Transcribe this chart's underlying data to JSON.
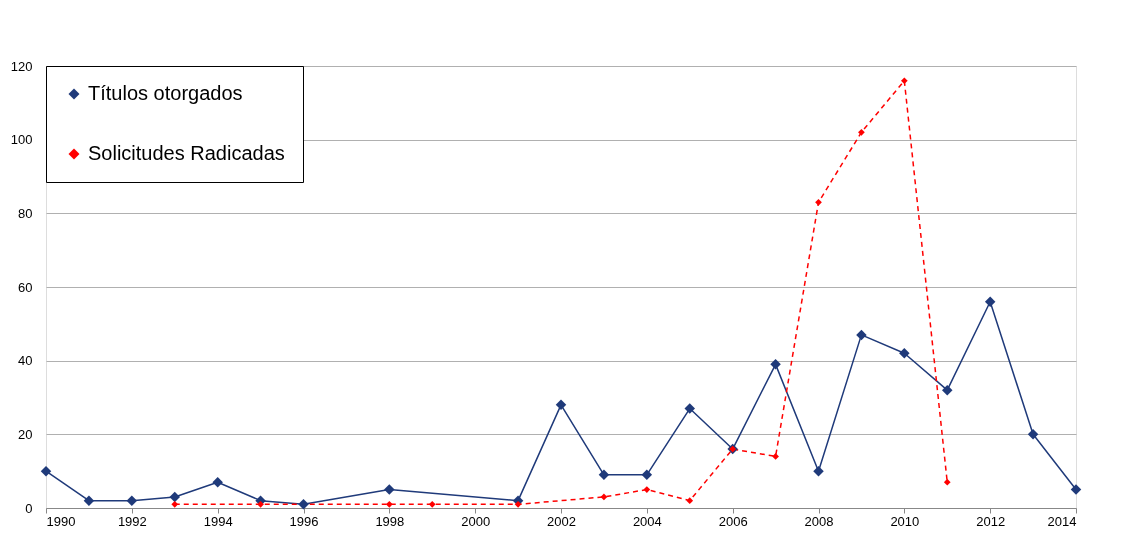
{
  "chart_data": {
    "type": "line",
    "xlim": [
      1990,
      2014
    ],
    "xticks": [
      1990,
      1992,
      1994,
      1996,
      1998,
      2000,
      2002,
      2004,
      2006,
      2008,
      2010,
      2012,
      2014
    ],
    "ylim": [
      0,
      120
    ],
    "yticks": [
      0,
      20,
      40,
      60,
      80,
      100,
      120
    ],
    "grid": "y",
    "legend": "top left",
    "marker": "diamond",
    "series": [
      {
        "name": "Títulos otorgados",
        "color": "#1f3a7a",
        "line_style": "solid",
        "x": [
          1990,
          1991,
          1992,
          1993,
          1994,
          1995,
          1996,
          1998,
          2001,
          2002,
          2003,
          2004,
          2005,
          2006,
          2007,
          2008,
          2009,
          2010,
          2011,
          2012,
          2013,
          2014
        ],
        "values": [
          10,
          2,
          2,
          3,
          7,
          2,
          1,
          5,
          2,
          28,
          9,
          9,
          27,
          16,
          39,
          10,
          47,
          42,
          32,
          56,
          20,
          5
        ]
      },
      {
        "name": "Solicitudes Radicadas",
        "color": "#ff0000",
        "line_style": "dashed",
        "x": [
          1993,
          1995,
          1998,
          1999,
          2001,
          2003,
          2004,
          2005,
          2006,
          2007,
          2008,
          2009,
          2010,
          2011
        ],
        "values": [
          1,
          1,
          1,
          1,
          1,
          3,
          5,
          2,
          16,
          14,
          83,
          102,
          116,
          7
        ]
      }
    ]
  }
}
